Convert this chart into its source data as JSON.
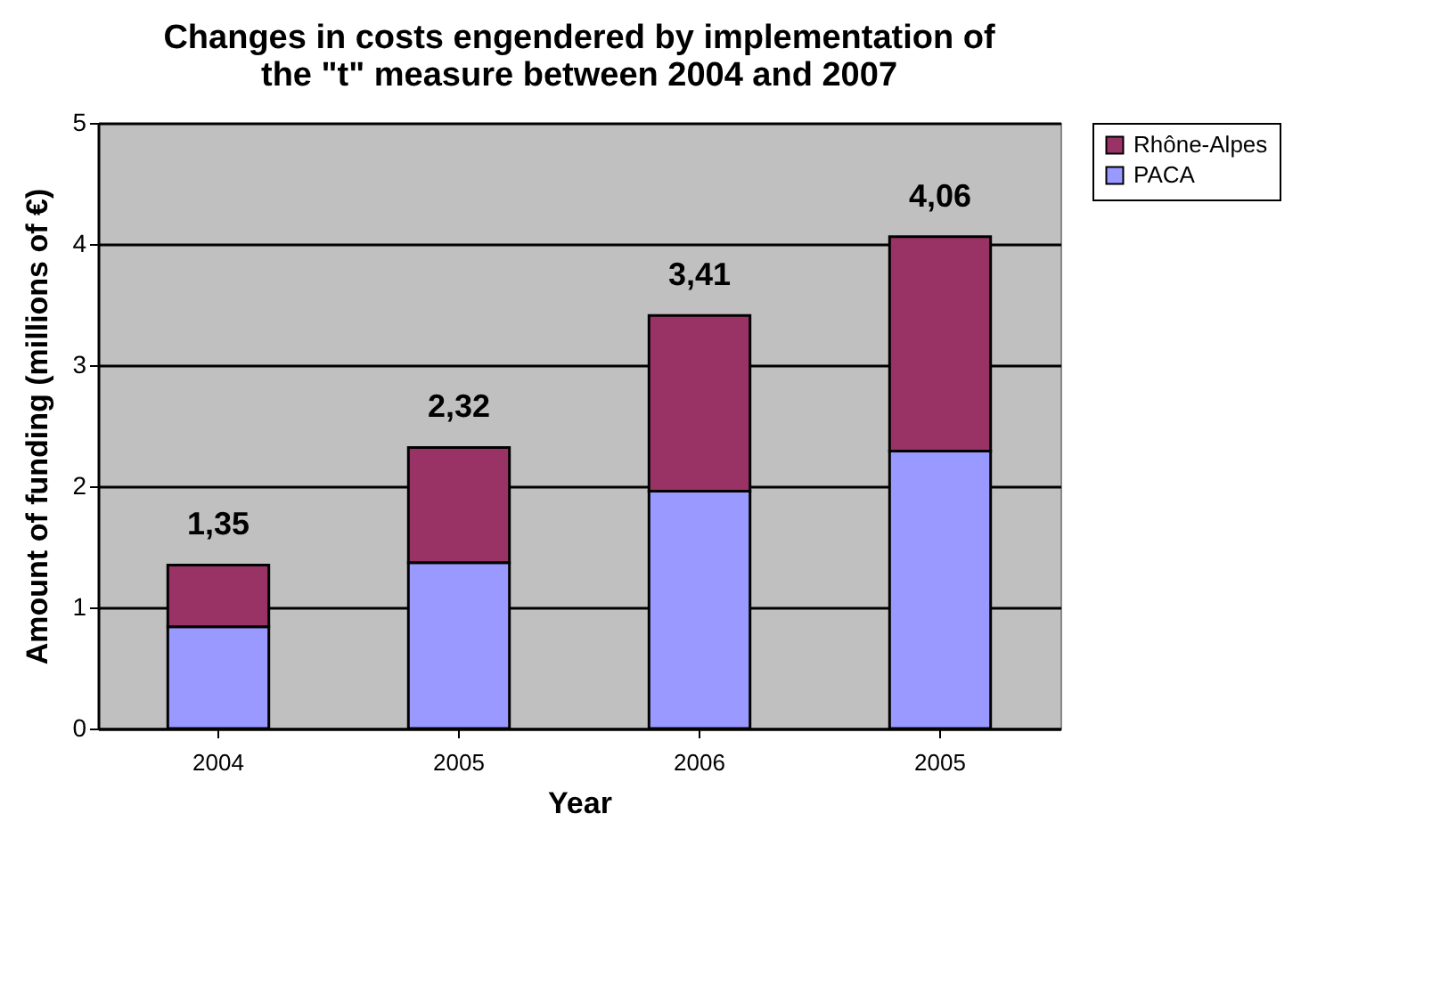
{
  "chart_data": {
    "type": "bar",
    "title": [
      "Changes in costs engendered by implementation of",
      "the \"t\" measure between 2004 and 2007"
    ],
    "xlabel": "Year",
    "ylabel": "Amount of funding (millions of €)",
    "categories": [
      "2004",
      "2005",
      "2006",
      "2005"
    ],
    "stacked": true,
    "series": [
      {
        "name": "PACA",
        "color": "#9999ff",
        "values": [
          0.84,
          1.37,
          1.96,
          2.29
        ]
      },
      {
        "name": "Rhône-Alpes",
        "color": "#993366",
        "values": [
          0.51,
          0.95,
          1.45,
          1.77
        ]
      }
    ],
    "totals": [
      "1,35",
      "2,32",
      "3,41",
      "4,06"
    ],
    "ylim": [
      0,
      5
    ],
    "yticks": [
      0,
      1,
      2,
      3,
      4,
      5
    ],
    "grid": "y",
    "legend": "right"
  }
}
